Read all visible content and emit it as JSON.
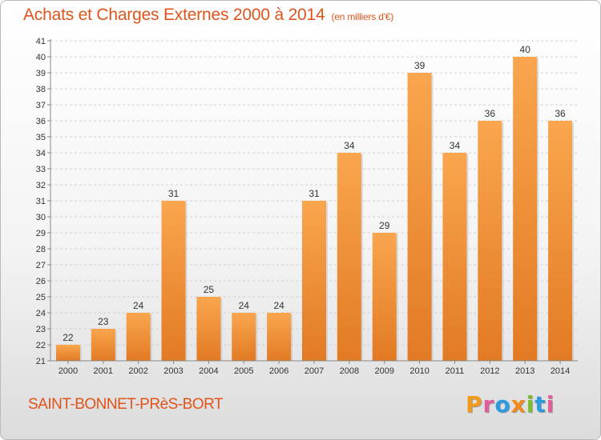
{
  "chart_data": {
    "type": "bar",
    "title": "Achats et Charges Externes 2000 à 2014",
    "subtitle": "(en milliers d'€)",
    "categories": [
      "2000",
      "2001",
      "2002",
      "2003",
      "2004",
      "2005",
      "2006",
      "2007",
      "2008",
      "2009",
      "2010",
      "2011",
      "2012",
      "2013",
      "2014"
    ],
    "values": [
      22,
      23,
      24,
      31,
      25,
      24,
      24,
      31,
      34,
      29,
      39,
      34,
      36,
      40,
      36
    ],
    "ylim": [
      21,
      41
    ],
    "yticks": [
      21,
      22,
      23,
      24,
      25,
      26,
      27,
      28,
      29,
      30,
      31,
      32,
      33,
      34,
      35,
      36,
      37,
      38,
      39,
      40,
      41
    ],
    "grid": true,
    "bar_color_top": "#f9a64e",
    "bar_color_bottom": "#e27a23"
  },
  "footer": {
    "city": "SAINT-BONNET-PRèS-BORT",
    "logo_letters": [
      "P",
      "r",
      "o",
      "x",
      "i",
      "t",
      "i"
    ],
    "logo_colors": [
      "#f39b1a",
      "#e25d9a",
      "#2d9be0",
      "#f08a1c",
      "#7cbf2c",
      "#2d9be0",
      "#e25d9a"
    ]
  }
}
